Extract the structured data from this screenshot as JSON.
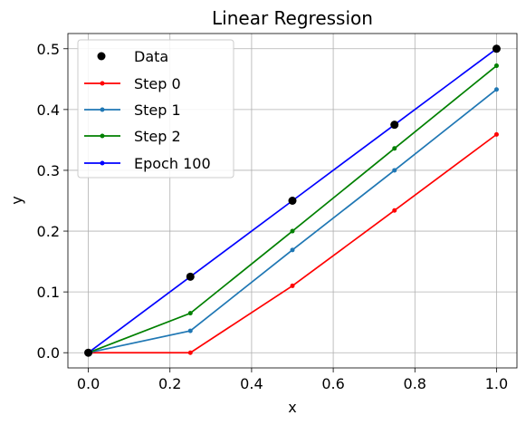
{
  "chart_data": {
    "type": "line",
    "title": "Linear Regression",
    "xlabel": "x",
    "ylabel": "y",
    "xlim": [
      -0.05,
      1.05
    ],
    "ylim": [
      -0.025,
      0.525
    ],
    "xticks": [
      0.0,
      0.2,
      0.4,
      0.6,
      0.8,
      1.0
    ],
    "xtick_labels": [
      "0.0",
      "0.2",
      "0.4",
      "0.6",
      "0.8",
      "1.0"
    ],
    "yticks": [
      0.0,
      0.1,
      0.2,
      0.3,
      0.4,
      0.5
    ],
    "ytick_labels": [
      "0.0",
      "0.1",
      "0.2",
      "0.3",
      "0.4",
      "0.5"
    ],
    "grid": true,
    "legend_position": "upper-left",
    "x": [
      0.0,
      0.25,
      0.5,
      0.75,
      1.0
    ],
    "scatter": {
      "name": "Data",
      "color": "#000000",
      "values": [
        0.0,
        0.125,
        0.25,
        0.375,
        0.5
      ]
    },
    "series": [
      {
        "name": "Step 0",
        "color": "#ff0000",
        "values": [
          0.0,
          0.0,
          0.11,
          0.234,
          0.359
        ]
      },
      {
        "name": "Step 1",
        "color": "#1f77b4",
        "values": [
          0.0,
          0.036,
          0.169,
          0.3,
          0.433
        ]
      },
      {
        "name": "Step 2",
        "color": "#008000",
        "values": [
          0.0,
          0.065,
          0.2,
          0.336,
          0.472
        ]
      },
      {
        "name": "Epoch 100",
        "color": "#0000ff",
        "values": [
          0.0,
          0.125,
          0.25,
          0.375,
          0.5
        ]
      }
    ]
  }
}
